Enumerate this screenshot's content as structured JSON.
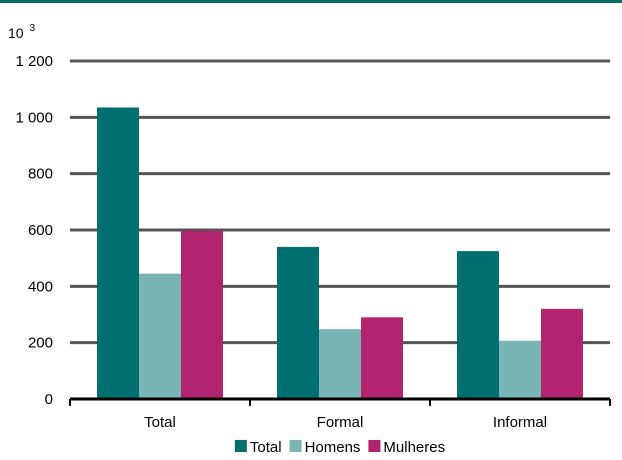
{
  "colors": {
    "top_rule": "#0d6b6b",
    "gridline": "#555555",
    "axis": "#000000",
    "series": [
      "#006f6f",
      "#7ab5b5",
      "#b3246f"
    ]
  },
  "chart_data": {
    "type": "bar",
    "unit_label": {
      "base": "10",
      "exponent": "3"
    },
    "categories": [
      "Total",
      "Formal",
      "Informal"
    ],
    "series": [
      {
        "name": "Total",
        "values": [
          1035,
          540,
          525
        ]
      },
      {
        "name": "Homens",
        "values": [
          445,
          248,
          207
        ]
      },
      {
        "name": "Mulheres",
        "values": [
          597,
          290,
          320
        ]
      }
    ],
    "ylim": [
      0,
      1200
    ],
    "yticks": [
      "0",
      "200",
      "400",
      "600",
      "800",
      "1 000",
      "1 200"
    ],
    "grid": true,
    "legend": "bottom"
  }
}
